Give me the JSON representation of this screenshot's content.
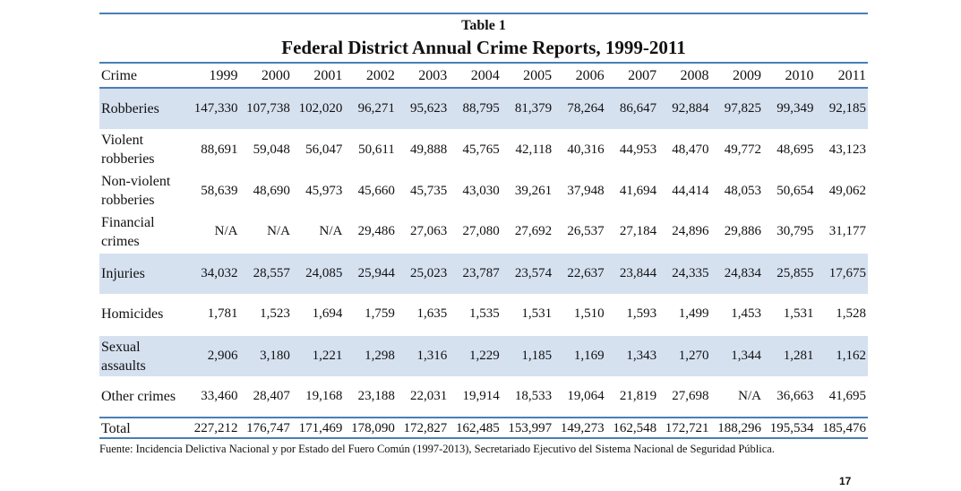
{
  "caption": "Table 1",
  "title": "Federal District Annual Crime Reports, 1999-2011",
  "columns": [
    "Crime",
    "1999",
    "2000",
    "2001",
    "2002",
    "2003",
    "2004",
    "2005",
    "2006",
    "2007",
    "2008",
    "2009",
    "2010",
    "2011"
  ],
  "rows": [
    {
      "crime": "Robberies",
      "values": [
        "147,330",
        "107,738",
        "102,020",
        "96,271",
        "95,623",
        "88,795",
        "81,379",
        "78,264",
        "86,647",
        "92,884",
        "97,825",
        "99,349",
        "92,185"
      ]
    },
    {
      "crime": "Violent robberies",
      "values": [
        "88,691",
        "59,048",
        "56,047",
        "50,611",
        "49,888",
        "45,765",
        "42,118",
        "40,316",
        "44,953",
        "48,470",
        "49,772",
        "48,695",
        "43,123"
      ]
    },
    {
      "crime": "Non-violent robberies",
      "values": [
        "58,639",
        "48,690",
        "45,973",
        "45,660",
        "45,735",
        "43,030",
        "39,261",
        "37,948",
        "41,694",
        "44,414",
        "48,053",
        "50,654",
        "49,062"
      ]
    },
    {
      "crime": "Financial crimes",
      "values": [
        "N/A",
        "N/A",
        "N/A",
        "29,486",
        "27,063",
        "27,080",
        "27,692",
        "26,537",
        "27,184",
        "24,896",
        "29,886",
        "30,795",
        "31,177"
      ]
    },
    {
      "crime": "Injuries",
      "values": [
        "34,032",
        "28,557",
        "24,085",
        "25,944",
        "25,023",
        "23,787",
        "23,574",
        "22,637",
        "23,844",
        "24,335",
        "24,834",
        "25,855",
        "17,675"
      ]
    },
    {
      "crime": "Homicides",
      "values": [
        "1,781",
        "1,523",
        "1,694",
        "1,759",
        "1,635",
        "1,535",
        "1,531",
        "1,510",
        "1,593",
        "1,499",
        "1,453",
        "1,531",
        "1,528"
      ]
    },
    {
      "crime": "Sexual assaults",
      "values": [
        "2,906",
        "3,180",
        "1,221",
        "1,298",
        "1,316",
        "1,229",
        "1,185",
        "1,169",
        "1,343",
        "1,270",
        "1,344",
        "1,281",
        "1,162"
      ]
    },
    {
      "crime": "Other crimes",
      "values": [
        "33,460",
        "28,407",
        "19,168",
        "23,188",
        "22,031",
        "19,914",
        "18,533",
        "19,064",
        "21,819",
        "27,698",
        "N/A",
        "36,663",
        "41,695"
      ]
    }
  ],
  "total": {
    "crime": "Total",
    "values": [
      "227,212",
      "176,747",
      "171,469",
      "178,090",
      "172,827",
      "162,485",
      "153,997",
      "149,273",
      "162,548",
      "172,721",
      "188,296",
      "195,534",
      "185,476"
    ]
  },
  "source": "Fuente: Incidencia Delictiva Nacional y por Estado del Fuero Común (1997-2013), Secretariado Ejecutivo del Sistema Nacional de Seguridad Pública.",
  "page_number": "17",
  "colors": {
    "rule": "#4a7fb5",
    "shade": "#d6e1f0"
  }
}
